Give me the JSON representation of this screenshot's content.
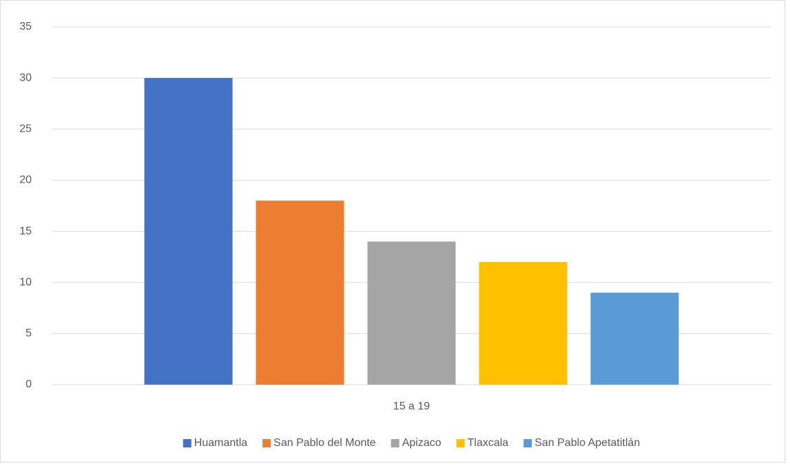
{
  "chart_data": {
    "type": "bar",
    "categories": [
      "15 a 19"
    ],
    "series": [
      {
        "name": "Huamantla",
        "color": "#4472c4",
        "values": [
          30
        ]
      },
      {
        "name": "San Pablo del Monte",
        "color": "#ed7d31",
        "values": [
          18
        ]
      },
      {
        "name": "Apizaco",
        "color": "#a5a5a5",
        "values": [
          14
        ]
      },
      {
        "name": "Tlaxcala",
        "color": "#ffc000",
        "values": [
          12
        ]
      },
      {
        "name": "San Pablo Apetatitlán",
        "color": "#5b9bd5",
        "values": [
          9
        ]
      }
    ],
    "ylim": [
      0,
      35
    ],
    "yticks": [
      0,
      5,
      10,
      15,
      20,
      25,
      30,
      35
    ],
    "grid": true,
    "legend": "bottom"
  }
}
